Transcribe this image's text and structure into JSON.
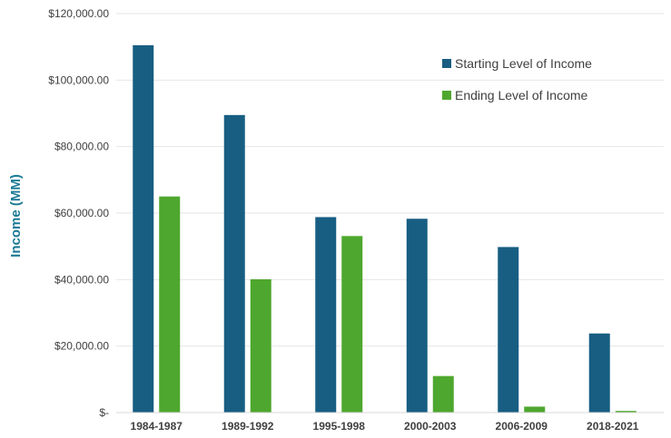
{
  "chart_data": {
    "type": "bar",
    "title": "",
    "xlabel": "",
    "ylabel": "Income (MM)",
    "ylim": [
      0,
      120000
    ],
    "ytick_values": [
      0,
      20000,
      40000,
      60000,
      80000,
      100000,
      120000
    ],
    "ytick_labels": [
      "$-",
      "$20,000.00",
      "$40,000.00",
      "$60,000.00",
      "$80,000.00",
      "$100,000.00",
      "$120,000.00"
    ],
    "grid": "horizontal",
    "legend_position": "top-right",
    "categories": [
      "1984-1987",
      "1989-1992",
      "1995-1998",
      "2000-2003",
      "2006-2009",
      "2018-2021"
    ],
    "series": [
      {
        "name": "Starting Level of Income",
        "color": "#175e82",
        "values": [
          110500,
          89500,
          58800,
          58300,
          49800,
          23800
        ]
      },
      {
        "name": "Ending Level of Income",
        "color": "#4ea72e",
        "values": [
          65000,
          40100,
          53100,
          11000,
          1800,
          500
        ]
      }
    ],
    "ylabel_color": "#1b7a95",
    "axis_color": "#d9d9d9"
  }
}
